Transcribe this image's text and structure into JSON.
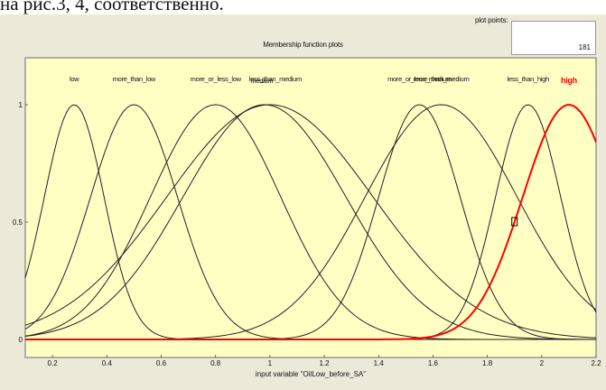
{
  "caption": "на рис.3, 4, соответственно.",
  "window": {
    "title": "Membership function plots",
    "plot_points_label": "plot points:",
    "plot_points_value": "181",
    "xlabel": "input variable \"OilLow_before_SA\""
  },
  "colors": {
    "panel": "#ffffc4",
    "curve": "#222222",
    "selected": "#ff0000",
    "window": "#ece9d8"
  },
  "chart_data": {
    "type": "line",
    "xlim": [
      0.1,
      2.2
    ],
    "ylim": [
      0,
      1
    ],
    "xticks": [
      "0.2",
      "0.4",
      "0.6",
      "0.8",
      "1",
      "1.2",
      "1.4",
      "1.6",
      "1.8",
      "2",
      "2.2"
    ],
    "yticks": [
      "0",
      "0.5",
      "1"
    ],
    "series": [
      {
        "name": "low",
        "center": 0.28,
        "sigma": 0.11,
        "selected": false
      },
      {
        "name": "more_than_low",
        "center": 0.5,
        "sigma": 0.16,
        "selected": false
      },
      {
        "name": "more_or_less_low",
        "center": 0.8,
        "sigma": 0.24,
        "selected": false
      },
      {
        "name": "less_than_medium",
        "center": 0.98,
        "sigma": 0.3,
        "selected": false
      },
      {
        "name": "medium",
        "center": 1.0,
        "sigma": 0.38,
        "selected": false
      },
      {
        "name": "more_or_less_medium",
        "center": 1.55,
        "sigma": 0.15,
        "selected": false
      },
      {
        "name": "more_than_medium",
        "center": 1.63,
        "sigma": 0.28,
        "selected": false
      },
      {
        "name": "less_than_high",
        "center": 1.95,
        "sigma": 0.12,
        "selected": false
      },
      {
        "name": "high",
        "center": 2.1,
        "sigma": 0.17,
        "selected": true
      }
    ],
    "series_labels": [
      "low",
      "more_than_low",
      "more_or_less_low",
      "medium",
      "less_than_medium",
      "more_or_less_medium",
      "more_than_medium",
      "less_than_high",
      "high"
    ],
    "marker": {
      "x": 1.9,
      "y": 0.5
    }
  }
}
